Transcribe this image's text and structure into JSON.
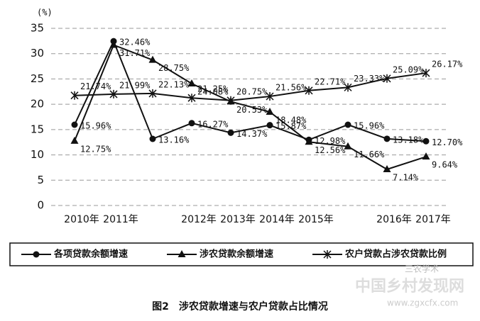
{
  "chart_data": {
    "type": "line",
    "y_label": "(%)",
    "caption": "图2　涉农贷款增速与农户贷款占比情况",
    "categories": [
      "2010年",
      "2011年",
      null,
      "2012年",
      "2013年",
      "2014年",
      "2015年",
      null,
      "2016年",
      "2017年"
    ],
    "series": [
      {
        "name": "各项贷款余额增速",
        "color": "#111111",
        "marker": "circle",
        "values": [
          15.96,
          32.46,
          13.16,
          16.27,
          14.37,
          15.87,
          12.98,
          15.96,
          13.18,
          12.7
        ],
        "value_labels": [
          "15.96%",
          "32.46%",
          "13.16%",
          "16.27%",
          "14.37%",
          "15.87%",
          "12.98%",
          "15.96%",
          "13.18%",
          "12.70%"
        ]
      },
      {
        "name": "涉农贷款余额增速",
        "color": "#111111",
        "marker": "triangle",
        "values": [
          12.75,
          31.71,
          28.75,
          24.08,
          20.53,
          18.48,
          12.56,
          11.66,
          7.14,
          9.64
        ],
        "value_labels": [
          "12.75%",
          "31.71%",
          "28.75%",
          "24.08%",
          "20.53%",
          "18.48%",
          "12.56%",
          "11.66%",
          "7.14%",
          "9.64%"
        ]
      },
      {
        "name": "农户贷款占涉农贷款比例",
        "color": "#111111",
        "marker": "star",
        "values": [
          21.74,
          21.99,
          22.13,
          21.25,
          20.75,
          21.56,
          22.71,
          23.33,
          25.09,
          26.17
        ],
        "value_labels": [
          "21.74%",
          "21.99%",
          "22.13%",
          "21.25%",
          "20.75%",
          "21.56%",
          "22.71%",
          "23.33%",
          "25.09%",
          "26.17%"
        ]
      }
    ],
    "ylim": [
      0,
      35
    ],
    "yticks": [
      0,
      5,
      10,
      15,
      20,
      25,
      30,
      35
    ],
    "grid": true,
    "watermark": [
      "三农学术",
      "中国乡村发现网",
      "www.zgxcfx.com"
    ]
  }
}
